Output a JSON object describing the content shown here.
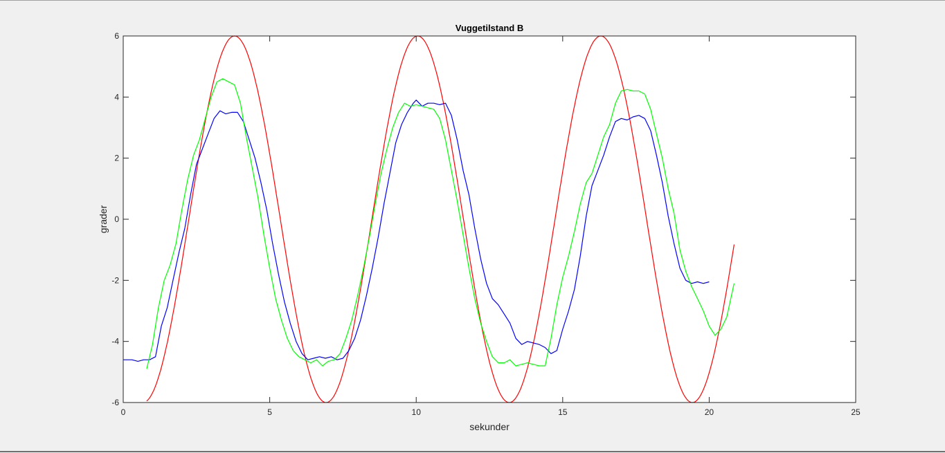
{
  "chart_data": {
    "type": "line",
    "title": "Vuggetilstand B",
    "xlabel": "sekunder",
    "ylabel": "grader",
    "xlim": [
      0,
      25
    ],
    "ylim": [
      -6,
      6
    ],
    "xticks": [
      0,
      5,
      10,
      15,
      20,
      25
    ],
    "yticks": [
      -6,
      -4,
      -2,
      0,
      2,
      4,
      6
    ],
    "xtick_labels": [
      "0",
      "5",
      "10",
      "15",
      "20",
      "25"
    ],
    "ytick_labels": [
      "-6",
      "-4",
      "-2",
      "0",
      "2",
      "4",
      "6"
    ],
    "grid": false,
    "legend": "none",
    "series": [
      {
        "color": "#ff0000",
        "function": "sine",
        "amplitude": 6,
        "period": 6.25,
        "peak_x": 3.8,
        "x_range": [
          0.8,
          20.85
        ]
      },
      {
        "color": "#0000ff",
        "x": [
          0,
          0.3,
          0.5,
          0.7,
          0.9,
          1.1,
          1.3,
          1.5,
          1.7,
          1.9,
          2.1,
          2.3,
          2.5,
          2.7,
          2.9,
          3.1,
          3.3,
          3.5,
          3.7,
          3.9,
          4.1,
          4.3,
          4.5,
          4.7,
          4.9,
          5.1,
          5.3,
          5.5,
          5.7,
          5.9,
          6.1,
          6.3,
          6.5,
          6.7,
          6.9,
          7.1,
          7.3,
          7.5,
          7.7,
          7.9,
          8.1,
          8.3,
          8.5,
          8.7,
          8.9,
          9.1,
          9.3,
          9.5,
          9.7,
          9.9,
          10.0,
          10.2,
          10.4,
          10.6,
          10.8,
          11.0,
          11.2,
          11.4,
          11.6,
          11.8,
          12.0,
          12.2,
          12.4,
          12.6,
          12.8,
          13.0,
          13.2,
          13.4,
          13.6,
          13.8,
          14.0,
          14.2,
          14.4,
          14.6,
          14.8,
          15.0,
          15.2,
          15.4,
          15.6,
          15.8,
          16.0,
          16.2,
          16.4,
          16.6,
          16.8,
          17.0,
          17.2,
          17.4,
          17.6,
          17.8,
          18.0,
          18.2,
          18.4,
          18.6,
          18.8,
          19.0,
          19.2,
          19.4,
          19.6,
          19.8,
          20.0
        ],
        "y": [
          -4.6,
          -4.6,
          -4.65,
          -4.6,
          -4.6,
          -4.5,
          -3.5,
          -2.9,
          -2.0,
          -1.1,
          -0.3,
          0.8,
          1.8,
          2.3,
          2.8,
          3.3,
          3.55,
          3.45,
          3.5,
          3.5,
          3.2,
          2.6,
          2.0,
          1.2,
          0.3,
          -0.8,
          -1.8,
          -2.7,
          -3.4,
          -4.0,
          -4.4,
          -4.6,
          -4.55,
          -4.5,
          -4.55,
          -4.5,
          -4.6,
          -4.55,
          -4.3,
          -3.9,
          -3.3,
          -2.5,
          -1.6,
          -0.6,
          0.5,
          1.5,
          2.5,
          3.1,
          3.5,
          3.8,
          3.9,
          3.7,
          3.8,
          3.8,
          3.75,
          3.8,
          3.4,
          2.6,
          1.6,
          0.8,
          -0.3,
          -1.3,
          -2.1,
          -2.6,
          -2.8,
          -3.1,
          -3.4,
          -3.9,
          -4.1,
          -4.0,
          -4.05,
          -4.1,
          -4.2,
          -4.4,
          -4.3,
          -3.6,
          -3.0,
          -2.3,
          -1.2,
          0.1,
          1.1,
          1.6,
          2.1,
          2.7,
          3.2,
          3.3,
          3.25,
          3.35,
          3.4,
          3.3,
          2.9,
          2.1,
          1.2,
          0.1,
          -0.8,
          -1.6,
          -2.0,
          -2.1,
          -2.05,
          -2.1,
          -2.05
        ]
      },
      {
        "color": "#00ff00",
        "x": [
          0.8,
          1.0,
          1.2,
          1.4,
          1.6,
          1.8,
          2.0,
          2.2,
          2.4,
          2.6,
          2.8,
          3.0,
          3.2,
          3.4,
          3.6,
          3.8,
          4.0,
          4.2,
          4.4,
          4.6,
          4.8,
          5.0,
          5.2,
          5.4,
          5.6,
          5.8,
          6.0,
          6.2,
          6.4,
          6.6,
          6.8,
          7.0,
          7.2,
          7.4,
          7.6,
          7.8,
          8.0,
          8.2,
          8.4,
          8.6,
          8.8,
          9.0,
          9.2,
          9.4,
          9.6,
          9.8,
          10.0,
          10.2,
          10.4,
          10.6,
          10.8,
          11.0,
          11.2,
          11.4,
          11.6,
          11.8,
          12.0,
          12.2,
          12.4,
          12.6,
          12.8,
          13.0,
          13.2,
          13.4,
          13.6,
          13.8,
          14.0,
          14.2,
          14.4,
          14.6,
          14.8,
          15.0,
          15.2,
          15.4,
          15.6,
          15.8,
          16.0,
          16.2,
          16.4,
          16.6,
          16.8,
          17.0,
          17.2,
          17.4,
          17.6,
          17.8,
          18.0,
          18.2,
          18.4,
          18.6,
          18.8,
          19.0,
          19.2,
          19.4,
          19.6,
          19.8,
          20.0,
          20.2,
          20.4,
          20.6,
          20.85
        ],
        "y": [
          -4.9,
          -4.1,
          -2.9,
          -2.0,
          -1.5,
          -0.8,
          0.3,
          1.3,
          2.1,
          2.6,
          3.3,
          4.0,
          4.5,
          4.6,
          4.5,
          4.4,
          3.8,
          2.7,
          1.7,
          0.7,
          -0.5,
          -1.6,
          -2.6,
          -3.3,
          -3.9,
          -4.3,
          -4.5,
          -4.6,
          -4.7,
          -4.6,
          -4.8,
          -4.65,
          -4.6,
          -4.4,
          -3.9,
          -3.3,
          -2.5,
          -1.6,
          -0.6,
          0.5,
          1.5,
          2.3,
          3.0,
          3.5,
          3.8,
          3.7,
          3.75,
          3.7,
          3.65,
          3.6,
          3.3,
          2.6,
          1.6,
          0.6,
          -0.5,
          -1.6,
          -2.6,
          -3.4,
          -4.0,
          -4.5,
          -4.7,
          -4.7,
          -4.6,
          -4.8,
          -4.75,
          -4.7,
          -4.75,
          -4.8,
          -4.8,
          -3.9,
          -2.8,
          -1.9,
          -1.2,
          -0.4,
          0.5,
          1.2,
          1.5,
          2.1,
          2.7,
          3.1,
          3.8,
          4.2,
          4.25,
          4.2,
          4.2,
          4.1,
          3.6,
          2.8,
          2.0,
          1.0,
          0.2,
          -1.0,
          -1.7,
          -2.2,
          -2.6,
          -3.0,
          -3.5,
          -3.8,
          -3.6,
          -3.2,
          -2.1
        ]
      }
    ]
  }
}
